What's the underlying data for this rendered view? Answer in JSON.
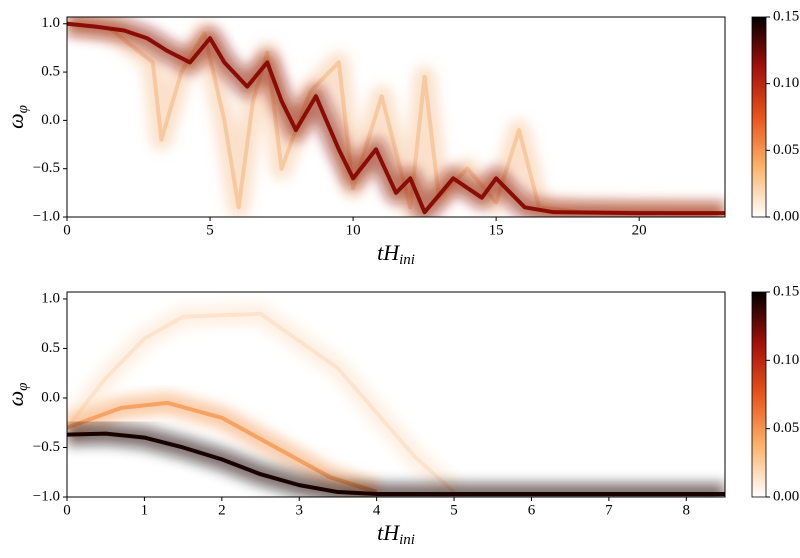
{
  "chart_data": [
    {
      "type": "density",
      "xlabel": {
        "main": "tH",
        "sub": "ini"
      },
      "ylabel": {
        "main": "ω",
        "sub": "φ"
      },
      "xlim": [
        0,
        23
      ],
      "ylim": [
        -1.0,
        1.07
      ],
      "xticks": [
        0,
        5,
        10,
        15,
        20
      ],
      "yticks": [
        {
          "value": -1.0,
          "label": "−1.0"
        },
        {
          "value": -0.5,
          "label": "−0.5"
        },
        {
          "value": 0.0,
          "label": "0.0"
        },
        {
          "value": 0.5,
          "label": "0.5"
        },
        {
          "value": 1.0,
          "label": "1.0"
        }
      ],
      "clim": [
        0,
        0.15
      ],
      "cticks": [
        {
          "value": 0,
          "label": "0.00"
        },
        {
          "value": 0.05,
          "label": "0.05"
        },
        {
          "value": 0.1,
          "label": "0.10"
        },
        {
          "value": 0.15,
          "label": "0.15"
        }
      ],
      "cmap": [
        "#ffffff",
        "#fbb36a",
        "#e8541a",
        "#a3100a",
        "#000000"
      ],
      "series": [
        {
          "color": "#f7c9a0",
          "x": [
            0,
            1.5,
            3,
            3.3,
            4,
            4.8,
            5.5,
            6,
            6.5,
            7,
            7.5,
            8.5,
            9.5,
            10,
            11,
            12,
            12.5,
            13,
            14,
            15,
            15.8,
            16.5,
            18,
            20,
            23
          ],
          "y": [
            1.0,
            0.95,
            0.6,
            -0.2,
            0.5,
            0.9,
            0.0,
            -0.9,
            0.2,
            0.7,
            -0.5,
            0.3,
            0.6,
            -0.7,
            0.25,
            -0.9,
            0.45,
            -0.8,
            -0.5,
            -0.85,
            -0.1,
            -0.9,
            -0.95,
            -0.95,
            -0.96
          ]
        },
        {
          "color": "#8a0d05",
          "x": [
            0,
            1,
            2,
            2.8,
            3.5,
            4.3,
            5,
            5.5,
            6.3,
            7,
            7.5,
            8,
            8.7,
            9.5,
            10,
            10.8,
            11.5,
            12,
            12.5,
            13.5,
            14.5,
            15,
            16,
            17,
            20,
            23
          ],
          "y": [
            1.0,
            0.97,
            0.93,
            0.85,
            0.72,
            0.6,
            0.85,
            0.6,
            0.35,
            0.6,
            0.2,
            -0.1,
            0.25,
            -0.3,
            -0.6,
            -0.3,
            -0.75,
            -0.6,
            -0.95,
            -0.6,
            -0.8,
            -0.6,
            -0.9,
            -0.95,
            -0.96,
            -0.96
          ]
        }
      ]
    },
    {
      "type": "density",
      "xlabel": {
        "main": "tH",
        "sub": "ini"
      },
      "ylabel": {
        "main": "ω",
        "sub": "φ"
      },
      "xlim": [
        0,
        8.5
      ],
      "ylim": [
        -1.0,
        1.07
      ],
      "xticks": [
        0,
        1,
        2,
        3,
        4,
        5,
        6,
        7,
        8
      ],
      "yticks": [
        {
          "value": -1.0,
          "label": "−1.0"
        },
        {
          "value": -0.5,
          "label": "−0.5"
        },
        {
          "value": 0.0,
          "label": "0.0"
        },
        {
          "value": 0.5,
          "label": "0.5"
        },
        {
          "value": 1.0,
          "label": "1.0"
        }
      ],
      "clim": [
        0,
        0.15
      ],
      "cticks": [
        {
          "value": 0,
          "label": "0.00"
        },
        {
          "value": 0.05,
          "label": "0.05"
        },
        {
          "value": 0.1,
          "label": "0.10"
        },
        {
          "value": 0.15,
          "label": "0.15"
        }
      ],
      "cmap": [
        "#ffffff",
        "#fbb36a",
        "#e8541a",
        "#a3100a",
        "#000000"
      ],
      "series": [
        {
          "color": "#fde3cc",
          "x": [
            0,
            0.5,
            1,
            1.5,
            2.5,
            3.5,
            4.5,
            5
          ],
          "y": [
            -0.3,
            0.2,
            0.6,
            0.82,
            0.85,
            0.3,
            -0.6,
            -0.95
          ]
        },
        {
          "color": "#f6a263",
          "x": [
            0,
            0.7,
            1.3,
            2,
            2.7,
            3.4,
            4
          ],
          "y": [
            -0.3,
            -0.1,
            -0.05,
            -0.2,
            -0.5,
            -0.8,
            -0.95
          ]
        },
        {
          "color": "#1a0200",
          "x": [
            0,
            0.5,
            1,
            1.5,
            2,
            2.5,
            3,
            3.5,
            4,
            8.5
          ],
          "y": [
            -0.37,
            -0.36,
            -0.4,
            -0.5,
            -0.62,
            -0.77,
            -0.88,
            -0.95,
            -0.97,
            -0.97
          ]
        }
      ]
    }
  ]
}
